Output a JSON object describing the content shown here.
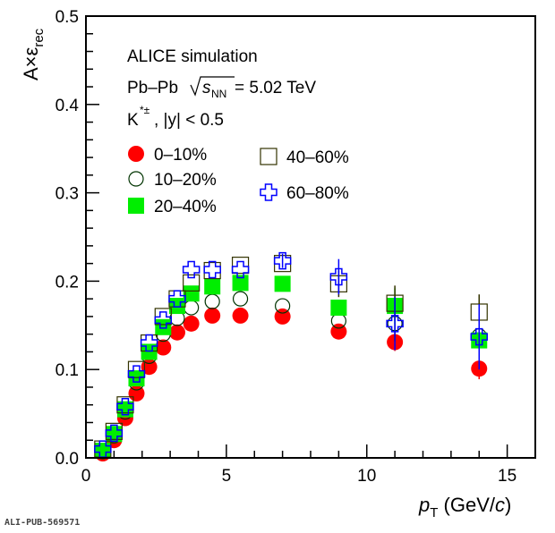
{
  "chart_data": {
    "type": "scatter",
    "title": "",
    "xlabel": "p_T (GeV/c)",
    "xlabel_parts": {
      "var": "p",
      "sub": "T",
      "unit_pre": " (GeV/",
      "unit_var": "c",
      "unit_post": ")"
    },
    "ylabel": "A×ε_rec",
    "ylabel_parts": {
      "main": "A×ε",
      "sub": "rec"
    },
    "xlim": [
      0,
      16
    ],
    "ylim": [
      0,
      0.5
    ],
    "xticks": [
      0,
      5,
      10,
      15
    ],
    "yticks": [
      0.0,
      0.1,
      0.2,
      0.3,
      0.4,
      0.5
    ],
    "xtick_labels": [
      "0",
      "5",
      "10",
      "15"
    ],
    "ytick_labels": [
      "0.0",
      "0.1",
      "0.2",
      "0.3",
      "0.4",
      "0.5"
    ],
    "annotations": {
      "line1": "ALICE simulation",
      "line2_pre": "Pb–Pb ",
      "line2_s": "s",
      "line2_sub": "NN",
      "line2_post": " = 5.02 TeV",
      "line3_k": "K",
      "line3_sup": "*±",
      "line3_post": ", |y| < 0.5"
    },
    "x": [
      0.6,
      1.0,
      1.4,
      1.8,
      2.25,
      2.75,
      3.25,
      3.75,
      4.5,
      5.5,
      7,
      9,
      11,
      14
    ],
    "series": [
      {
        "name": "0–10%",
        "marker": "filled-circle",
        "color": "#ff0000",
        "values": [
          0.005,
          0.02,
          0.045,
          0.073,
          0.103,
          0.125,
          0.142,
          0.152,
          0.161,
          0.161,
          0.16,
          0.143,
          0.131,
          0.101
        ],
        "errors": [
          0,
          0,
          0,
          0,
          0,
          0,
          0,
          0,
          0,
          0,
          0,
          0,
          0.01,
          0.012
        ]
      },
      {
        "name": "10–20%",
        "marker": "open-circle",
        "color": "#003300",
        "values": [
          0.007,
          0.025,
          0.052,
          0.085,
          0.115,
          0.14,
          0.158,
          0.17,
          0.177,
          0.18,
          0.172,
          0.155,
          0.152,
          0.138
        ],
        "errors": [
          0,
          0,
          0,
          0,
          0,
          0,
          0,
          0,
          0,
          0,
          0,
          0,
          0.02,
          0.03
        ]
      },
      {
        "name": "20–40%",
        "marker": "filled-square",
        "color": "#00ee00",
        "values": [
          0.008,
          0.027,
          0.055,
          0.09,
          0.12,
          0.148,
          0.172,
          0.186,
          0.194,
          0.198,
          0.197,
          0.17,
          0.172,
          0.133
        ],
        "errors": [
          0,
          0,
          0,
          0,
          0,
          0,
          0,
          0,
          0,
          0,
          0,
          0,
          0.02,
          0.03
        ]
      },
      {
        "name": "40–60%",
        "marker": "open-square",
        "color": "#333300",
        "values": [
          0.01,
          0.03,
          0.06,
          0.1,
          0.13,
          0.16,
          0.18,
          0.198,
          0.212,
          0.218,
          0.22,
          0.197,
          0.175,
          0.165
        ],
        "errors": [
          0,
          0,
          0,
          0,
          0,
          0,
          0,
          0,
          0,
          0,
          0,
          0.015,
          0.02,
          0.02
        ]
      },
      {
        "name": "60–80%",
        "marker": "open-cross",
        "color": "#0000ff",
        "values": [
          0.01,
          0.028,
          0.058,
          0.095,
          0.13,
          0.156,
          0.18,
          0.213,
          0.213,
          0.213,
          0.223,
          0.205,
          0.152,
          0.137
        ],
        "errors": [
          0,
          0,
          0,
          0,
          0,
          0,
          0,
          0,
          0,
          0,
          0.008,
          0.02,
          0.03,
          0.037
        ]
      }
    ],
    "legend_placement": "top-left"
  },
  "footer": "ALI-PUB-569571"
}
